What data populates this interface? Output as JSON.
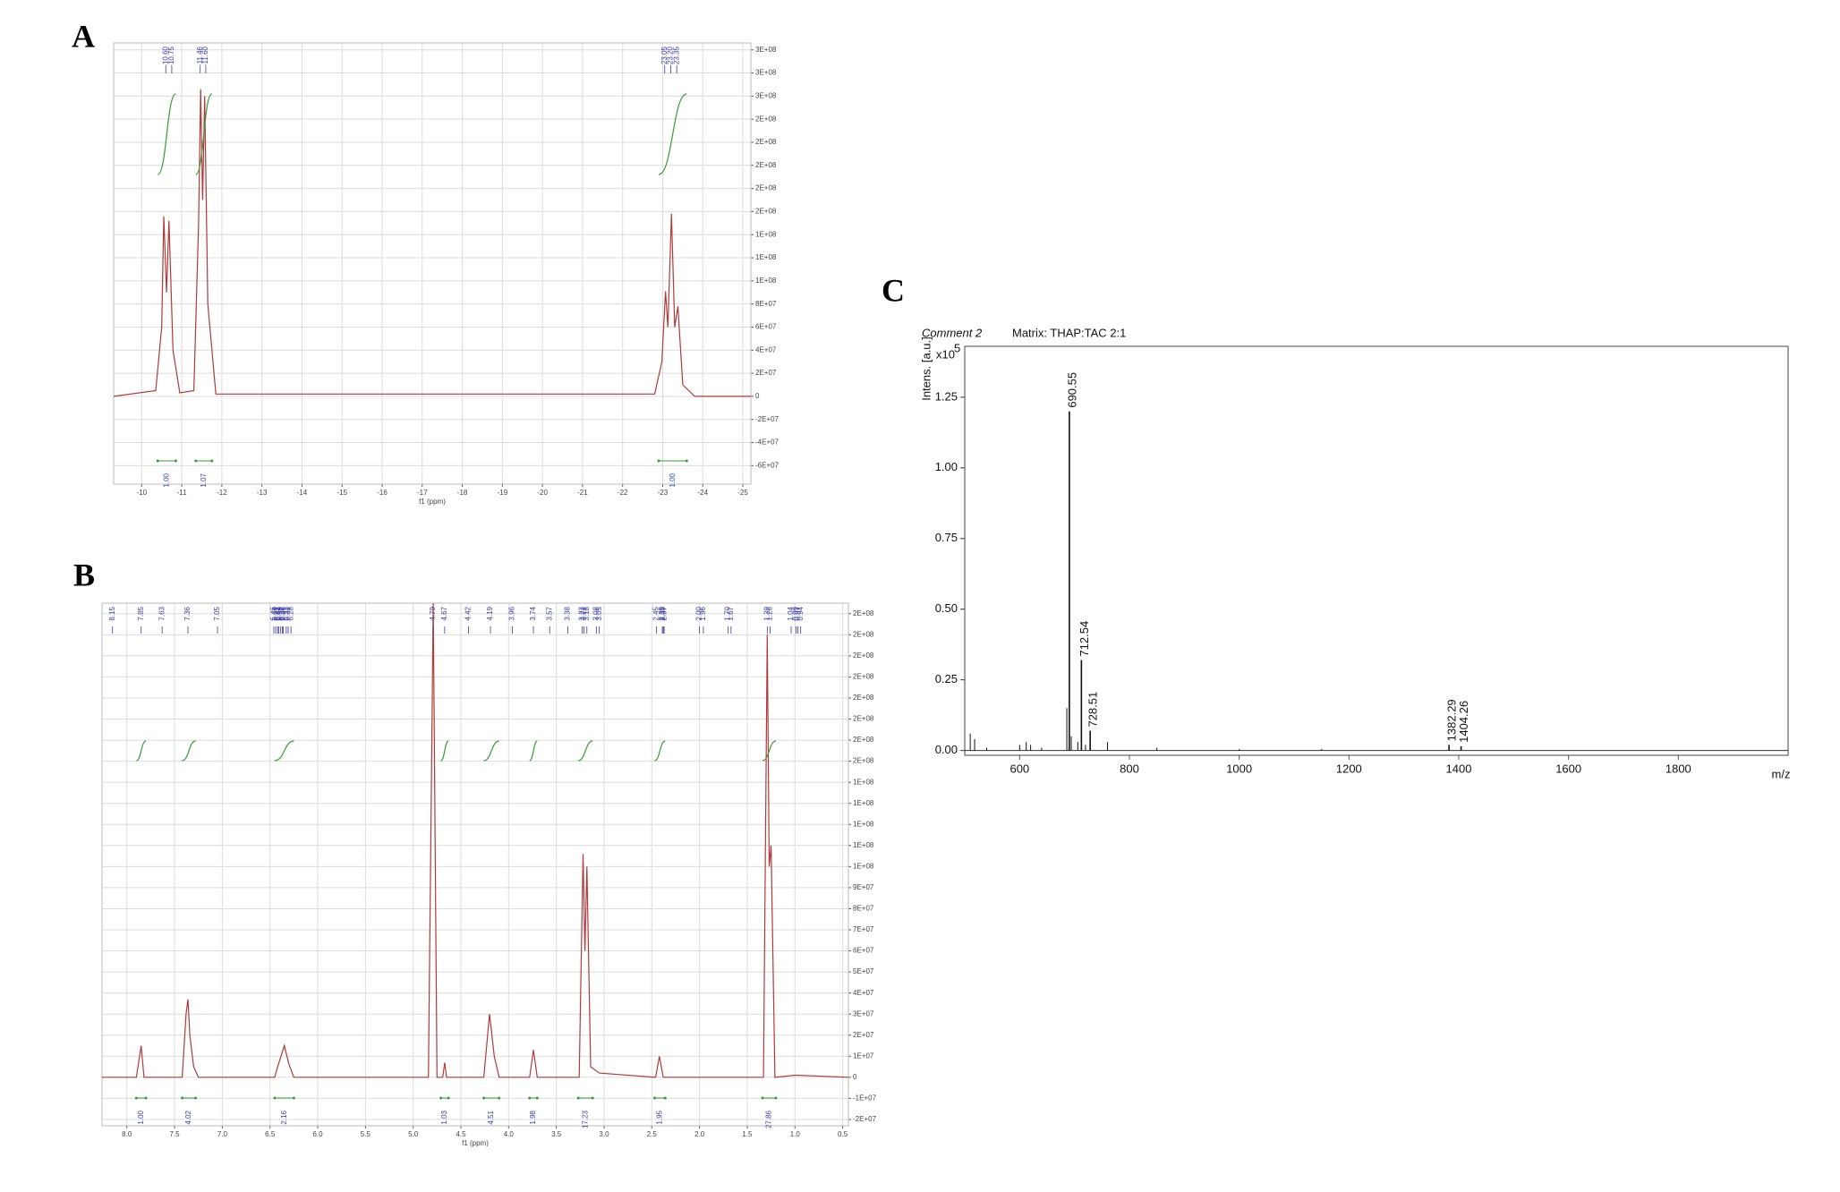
{
  "chart_data": [
    {
      "type": "line",
      "panel_label": "A",
      "x_label": "f1 (ppm)",
      "color": "#b03a3a",
      "grid": true,
      "ytick_side": "right",
      "xlim": [
        -9.3,
        -25.2
      ],
      "xticks": [
        -10,
        -11,
        -12,
        -13,
        -14,
        -15,
        -16,
        -17,
        -18,
        -19,
        -20,
        -21,
        -22,
        -23,
        -24,
        -25
      ],
      "ylim": [
        -76000000.0,
        306000000.0
      ],
      "yticks": [
        {
          "value": -60000000.0,
          "label": "-6E+07"
        },
        {
          "value": -40000000.0,
          "label": "-4E+07"
        },
        {
          "value": -20000000.0,
          "label": "-2E+07"
        },
        0,
        {
          "value": 20000000.0,
          "label": "2E+07"
        },
        {
          "value": 40000000.0,
          "label": "4E+07"
        },
        {
          "value": 60000000.0,
          "label": "6E+07"
        },
        {
          "value": 80000000.0,
          "label": "8E+07"
        },
        {
          "value": 100000000.0,
          "label": "1E+08"
        },
        {
          "value": 120000000.0,
          "label": "1E+08"
        },
        {
          "value": 140000000.0,
          "label": "1E+08"
        },
        {
          "value": 160000000.0,
          "label": "2E+08"
        },
        {
          "value": 180000000.0,
          "label": "2E+08"
        },
        {
          "value": 200000000.0,
          "label": "2E+08"
        },
        {
          "value": 220000000.0,
          "label": "2E+08"
        },
        {
          "value": 240000000.0,
          "label": "2E+08"
        },
        {
          "value": 260000000.0,
          "label": "3E+08"
        },
        {
          "value": 280000000.0,
          "label": "3E+08"
        },
        {
          "value": 300000000.0,
          "label": "3E+08"
        }
      ],
      "x": [
        -9.3,
        -10.35,
        -10.5,
        -10.55,
        -10.62,
        -10.68,
        -10.78,
        -10.95,
        -11.3,
        -11.42,
        -11.47,
        -11.52,
        -11.57,
        -11.65,
        -11.85,
        -22.8,
        -22.98,
        -23.07,
        -23.13,
        -23.22,
        -23.3,
        -23.38,
        -23.5,
        -23.8,
        -25.2
      ],
      "values": [
        0,
        5000000.0,
        60000000.0,
        156000000.0,
        90000000.0,
        152000000.0,
        40000000.0,
        3000000.0,
        5000000.0,
        150000000.0,
        266000000.0,
        170000000.0,
        260000000.0,
        80000000.0,
        2000000.0,
        2000000.0,
        30000000.0,
        91000000.0,
        60000000.0,
        158000000.0,
        60000000.0,
        78000000.0,
        10000000.0,
        0,
        0
      ],
      "peak_labels": [
        "-10.60",
        "-10.75",
        "-11.46",
        "-11.60",
        "-23.05",
        "-23.20",
        "-23.35"
      ],
      "integrals": {
        "from": [
          -10.4,
          -11.35,
          -22.9
        ],
        "to": [
          -10.85,
          -11.75,
          -23.6
        ],
        "labels": [
          "1.00",
          "1.07",
          "1.00"
        ]
      }
    },
    {
      "type": "line",
      "panel_label": "B",
      "x_label": "f1 (ppm)",
      "color": "#b03a3a",
      "grid": true,
      "ytick_side": "right",
      "xlim": [
        8.26,
        0.44
      ],
      "xticks": [
        {
          "value": 8,
          "label": "8.0"
        },
        7.5,
        {
          "value": 7,
          "label": "7.0"
        },
        6.5,
        {
          "value": 6,
          "label": "6.0"
        },
        5.5,
        {
          "value": 5,
          "label": "5.0"
        },
        4.5,
        {
          "value": 4,
          "label": "4.0"
        },
        3.5,
        {
          "value": 3,
          "label": "3.0"
        },
        2.5,
        {
          "value": 2,
          "label": "2.0"
        },
        1.5,
        {
          "value": 1,
          "label": "1.0"
        },
        0.5
      ],
      "ylim": [
        -23000000.0,
        225000000.0
      ],
      "yticks": [
        {
          "value": -20000000.0,
          "label": "-2E+07"
        },
        {
          "value": -10000000.0,
          "label": "-1E+07"
        },
        0,
        {
          "value": 10000000.0,
          "label": "1E+07"
        },
        {
          "value": 20000000.0,
          "label": "2E+07"
        },
        {
          "value": 30000000.0,
          "label": "3E+07"
        },
        {
          "value": 40000000.0,
          "label": "4E+07"
        },
        {
          "value": 50000000.0,
          "label": "5E+07"
        },
        {
          "value": 60000000.0,
          "label": "6E+07"
        },
        {
          "value": 70000000.0,
          "label": "7E+07"
        },
        {
          "value": 80000000.0,
          "label": "8E+07"
        },
        {
          "value": 90000000.0,
          "label": "9E+07"
        },
        {
          "value": 100000000.0,
          "label": "1E+08"
        },
        {
          "value": 110000000.0,
          "label": "1E+08"
        },
        {
          "value": 120000000.0,
          "label": "1E+08"
        },
        {
          "value": 130000000.0,
          "label": "1E+08"
        },
        {
          "value": 140000000.0,
          "label": "1E+08"
        },
        {
          "value": 150000000.0,
          "label": "2E+08"
        },
        {
          "value": 160000000.0,
          "label": "2E+08"
        },
        {
          "value": 170000000.0,
          "label": "2E+08"
        },
        {
          "value": 180000000.0,
          "label": "2E+08"
        },
        {
          "value": 190000000.0,
          "label": "2E+08"
        },
        {
          "value": 200000000.0,
          "label": "2E+08"
        },
        {
          "value": 210000000.0,
          "label": "2E+08"
        },
        {
          "value": 220000000.0,
          "label": "2E+08"
        }
      ],
      "x": [
        8.26,
        7.9,
        7.85,
        7.82,
        7.42,
        7.38,
        7.36,
        7.34,
        7.3,
        7.25,
        6.45,
        6.42,
        6.35,
        6.3,
        6.25,
        4.84,
        4.79,
        4.75,
        4.69,
        4.67,
        4.65,
        4.26,
        4.2,
        4.15,
        4.1,
        3.78,
        3.74,
        3.7,
        3.26,
        3.22,
        3.2,
        3.18,
        3.14,
        3.05,
        2.46,
        2.42,
        2.38,
        1.33,
        1.29,
        1.27,
        1.25,
        1.21,
        1.0,
        0.44
      ],
      "values": [
        0,
        0,
        15000000.0,
        0,
        0,
        30000000.0,
        37000000.0,
        20000000.0,
        5000000.0,
        0,
        0,
        5000000.0,
        15000000.0,
        6000000.0,
        0,
        0,
        225000000.0,
        0,
        0,
        7000000.0,
        0,
        0,
        30000000.0,
        10000000.0,
        0,
        0,
        13000000.0,
        0,
        0,
        106000000.0,
        60000000.0,
        100000000.0,
        5000000.0,
        2000000.0,
        0,
        10000000.0,
        0,
        0,
        210000000.0,
        100000000.0,
        110000000.0,
        0,
        1000000.0,
        0
      ],
      "peak_labels": [
        "8.15",
        "7.85",
        "7.63",
        "7.36",
        "7.05",
        "6.46",
        "6.44",
        "6.42",
        "6.41",
        "6.39",
        "6.37",
        "6.36",
        "6.33",
        "6.31",
        "6.28",
        "4.79",
        "4.67",
        "4.42",
        "4.19",
        "3.96",
        "3.74",
        "3.57",
        "3.38",
        "3.23",
        "3.21",
        "3.18",
        "3.08",
        "3.05",
        "2.45",
        "2.39",
        "2.38",
        "2.37",
        "2.00",
        "1.96",
        "1.70",
        "1.67",
        "1.29",
        "1.26",
        "1.04",
        "0.99",
        "0.97",
        "0.94"
      ],
      "integrals": {
        "from": [
          7.9,
          7.42,
          6.45,
          4.71,
          4.26,
          3.78,
          3.27,
          2.47,
          1.34
        ],
        "to": [
          7.8,
          7.28,
          6.25,
          4.63,
          4.1,
          3.7,
          3.12,
          2.36,
          1.2
        ],
        "labels": [
          "1.00",
          "4.02",
          "2.16",
          "1.03",
          "4.51",
          "1.98",
          "17.23",
          "1.95",
          "27.86"
        ]
      }
    },
    {
      "type": "stem",
      "panel_label": "C",
      "title": "Comment 2",
      "subtitle": "Matrix: THAP:TAC 2:1",
      "y_label": "Intens. [a.u.]",
      "y_scale": "x10",
      "y_scale_exponent": "5",
      "x_label": "m/z",
      "color": "#111111",
      "grid": false,
      "ytick_side": "left",
      "xlim": [
        500,
        2000
      ],
      "xticks": [
        600,
        800,
        1000,
        1200,
        1400,
        1600,
        1800
      ],
      "ylim": [
        -0.017,
        1.43
      ],
      "yticks": [
        {
          "value": 0,
          "label": "0.00"
        },
        0.25,
        {
          "value": 0.5,
          "label": "0.50"
        },
        0.75,
        {
          "value": 1,
          "label": "1.00"
        },
        1.25
      ],
      "x": [
        510,
        518,
        540,
        600,
        612,
        620,
        640,
        686,
        694,
        706,
        720,
        760,
        850,
        1000,
        1150
      ],
      "values": [
        0.06,
        0.04,
        0.01,
        0.02,
        0.03,
        0.02,
        0.01,
        0.15,
        0.05,
        0.03,
        0.02,
        0.03,
        0.01,
        0.005,
        0.005
      ],
      "labeled_peaks": {
        "x": [
          690.55,
          712.54,
          728.51,
          1382.29,
          1404.26
        ],
        "values": [
          1.2,
          0.32,
          0.07,
          0.02,
          0.015
        ]
      }
    }
  ]
}
